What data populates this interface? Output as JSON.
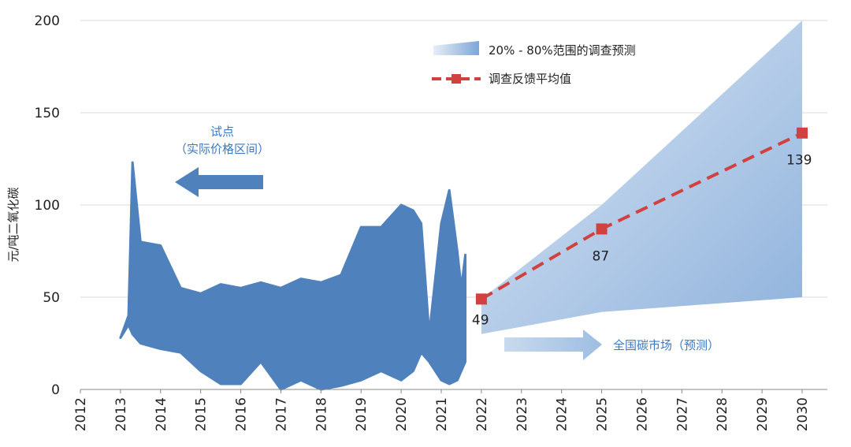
{
  "chart_data": {
    "type": "line",
    "ylabel": "元/吨二氧化碳",
    "ylim": [
      0,
      200
    ],
    "yticks": [
      0,
      50,
      100,
      150,
      200
    ],
    "xlim": [
      2012,
      2030
    ],
    "xticks": [
      "2012",
      "2013",
      "2014",
      "2015",
      "2016",
      "2017",
      "2018",
      "2019",
      "2020",
      "2021",
      "2022",
      "2023",
      "2024",
      "2025",
      "2026",
      "2027",
      "2028",
      "2029",
      "2030"
    ],
    "grid": "horizontal",
    "legend_position": "top-right",
    "colors": {
      "pilot": "#4F81BD",
      "band": "#A9C4E4",
      "mean": "#D0413F",
      "arrow_left": "#4F81BD",
      "arrow_right": "#A9C4E4",
      "annotation": "#3E78BF"
    },
    "legend": {
      "band_label": "20% - 80%范围的调查预测",
      "mean_label": "调查反馈平均值"
    },
    "annotations": {
      "pilot_line1": "试点",
      "pilot_line2": "（实际价格区间）",
      "national": "全国碳市场（预测）"
    },
    "series": [
      {
        "kind": "range_area",
        "x": [
          2013.0,
          2013.2,
          2013.3,
          2013.5,
          2014.0,
          2014.5,
          2015.0,
          2015.5,
          2016.0,
          2016.5,
          2017.0,
          2017.5,
          2018.0,
          2018.5,
          2019.0,
          2019.5,
          2020.0,
          2020.3,
          2020.5,
          2020.7,
          2021.0,
          2021.2,
          2021.4,
          2021.5,
          2021.6
        ],
        "high": [
          28,
          40,
          123,
          80,
          78,
          55,
          52,
          57,
          55,
          58,
          55,
          60,
          58,
          62,
          88,
          88,
          100,
          97,
          90,
          30,
          90,
          108,
          75,
          55,
          73
        ],
        "low": [
          28,
          35,
          30,
          25,
          22,
          20,
          10,
          3,
          3,
          15,
          0,
          5,
          0,
          2,
          5,
          10,
          5,
          10,
          20,
          15,
          5,
          3,
          5,
          10,
          15
        ]
      },
      {
        "kind": "band",
        "x": [
          2022,
          2025,
          2030
        ],
        "low": [
          30,
          42,
          50
        ],
        "high": [
          49,
          100,
          200
        ]
      },
      {
        "kind": "mean",
        "x": [
          2022,
          2025,
          2030
        ],
        "values": [
          49,
          87,
          139
        ],
        "labels": [
          "49",
          "87",
          "139"
        ]
      }
    ]
  }
}
